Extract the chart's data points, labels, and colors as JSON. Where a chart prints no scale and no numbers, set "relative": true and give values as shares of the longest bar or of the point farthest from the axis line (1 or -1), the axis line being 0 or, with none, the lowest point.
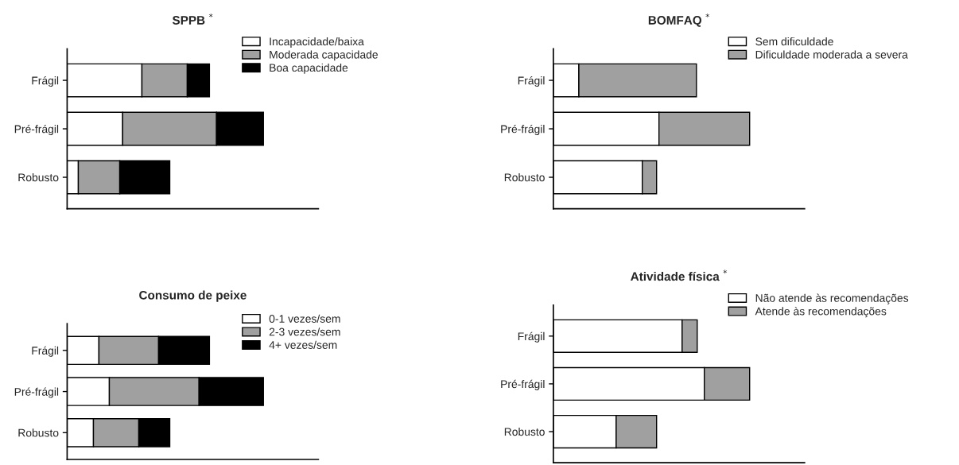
{
  "chart_data": [
    {
      "type": "bar",
      "orientation": "horizontal",
      "stacked": true,
      "relative": true,
      "title": "SPPB $^{*}$",
      "categories": [
        "Frágil",
        "Pré-frágil",
        "Robusto"
      ],
      "legend": "top right",
      "tick_labels": "y",
      "grid": false,
      "series": [
        {
          "name": "Incapacidade/baixa",
          "color": "#ffffff",
          "values": [
            0.381,
            0.283,
            0.057
          ]
        },
        {
          "name": "Moderada capacidade",
          "color": "#a0a0a0",
          "values": [
            0.231,
            0.478,
            0.211
          ]
        },
        {
          "name": "Boa capacidade",
          "color": "#000000",
          "values": [
            0.113,
            0.239,
            0.255
          ]
        }
      ]
    },
    {
      "type": "bar",
      "orientation": "horizontal",
      "stacked": true,
      "relative": true,
      "title": "BOMFAQ $^{*}$",
      "categories": [
        "Frágil",
        "Pré-frágil",
        "Robusto"
      ],
      "legend": "top right",
      "tick_labels": "y",
      "grid": false,
      "series": [
        {
          "name": "Sem dificuldade",
          "color": "#ffffff",
          "values": [
            0.13,
            0.538,
            0.453
          ]
        },
        {
          "name": "Dificuldade moderada a severa",
          "color": "#a0a0a0",
          "values": [
            0.599,
            0.462,
            0.073
          ]
        }
      ]
    },
    {
      "type": "bar",
      "orientation": "horizontal",
      "stacked": true,
      "relative": true,
      "title": "Consumo de peixe",
      "categories": [
        "Frágil",
        "Pré-frágil",
        "Robusto"
      ],
      "legend": "top right",
      "tick_labels": "y",
      "grid": false,
      "series": [
        {
          "name": "0-1 vezes/sem",
          "color": "#ffffff",
          "values": [
            0.162,
            0.215,
            0.134
          ]
        },
        {
          "name": "2-3 vezes/sem",
          "color": "#a0a0a0",
          "values": [
            0.304,
            0.457,
            0.231
          ]
        },
        {
          "name": "4+ vezes/sem",
          "color": "#000000",
          "values": [
            0.259,
            0.328,
            0.158
          ]
        }
      ]
    },
    {
      "type": "bar",
      "orientation": "horizontal",
      "stacked": true,
      "relative": true,
      "title": "Atividade física $^{*}$",
      "categories": [
        "Frágil",
        "Pré-frágil",
        "Robusto"
      ],
      "legend": "top right",
      "tick_labels": "y",
      "grid": false,
      "series": [
        {
          "name": "Não atende às recomendações",
          "color": "#ffffff",
          "values": [
            0.656,
            0.769,
            0.32
          ]
        },
        {
          "name": "Atende às recomendações",
          "color": "#a0a0a0",
          "values": [
            0.077,
            0.231,
            0.206
          ]
        }
      ]
    }
  ]
}
